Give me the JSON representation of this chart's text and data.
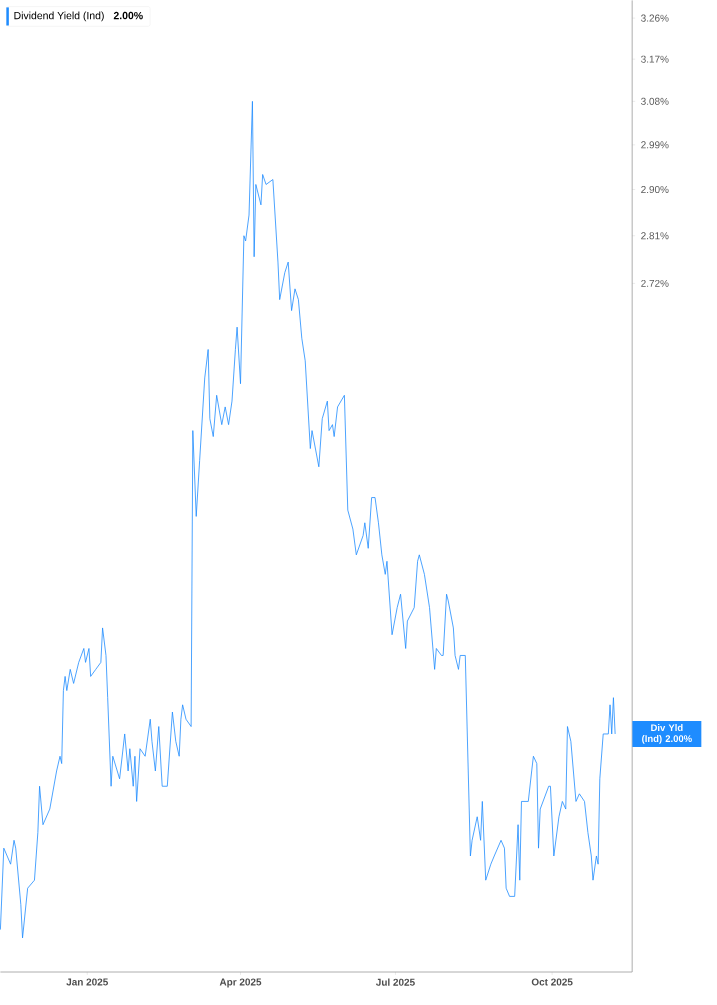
{
  "chart_data": {
    "type": "line",
    "x": [
      "2024-11-11",
      "2024-11-13",
      "2024-11-17",
      "2024-11-19",
      "2024-11-20",
      "2024-11-23",
      "2024-11-24",
      "2024-11-27",
      "2024-12-01",
      "2024-12-03",
      "2024-12-04",
      "2024-12-06",
      "2024-12-10",
      "2024-12-14",
      "2024-12-16",
      "2024-12-17",
      "2024-12-18",
      "2024-12-19",
      "2024-12-20",
      "2024-12-22",
      "2024-12-24",
      "2024-12-27",
      "2024-12-30",
      "2024-12-31",
      "2025-01-02",
      "2025-01-03",
      "2025-01-06",
      "2025-01-09",
      "2025-01-10",
      "2025-01-12",
      "2025-01-13",
      "2025-01-15",
      "2025-01-16",
      "2025-01-20",
      "2025-01-23",
      "2025-01-25",
      "2025-01-26",
      "2025-01-28",
      "2025-01-29",
      "2025-01-30",
      "2025-02-01",
      "2025-02-04",
      "2025-02-07",
      "2025-02-08",
      "2025-02-10",
      "2025-02-12",
      "2025-02-14",
      "2025-02-17",
      "2025-02-20",
      "2025-02-22",
      "2025-02-24",
      "2025-02-25",
      "2025-02-26",
      "2025-02-28",
      "2025-03-03",
      "2025-03-04",
      "2025-03-06",
      "2025-03-08",
      "2025-03-11",
      "2025-03-13",
      "2025-03-14",
      "2025-03-16",
      "2025-03-18",
      "2025-03-21",
      "2025-03-23",
      "2025-03-25",
      "2025-03-27",
      "2025-03-29",
      "2025-03-30",
      "2025-04-01",
      "2025-04-03",
      "2025-04-04",
      "2025-04-06",
      "2025-04-08",
      "2025-04-09",
      "2025-04-10",
      "2025-04-13",
      "2025-04-14",
      "2025-04-16",
      "2025-04-20",
      "2025-04-23",
      "2025-04-24",
      "2025-04-27",
      "2025-04-29",
      "2025-05-01",
      "2025-05-03",
      "2025-05-05",
      "2025-05-07",
      "2025-05-09",
      "2025-05-12",
      "2025-05-13",
      "2025-05-17",
      "2025-05-19",
      "2025-05-22",
      "2025-05-23",
      "2025-05-25",
      "2025-05-26",
      "2025-05-28",
      "2025-06-01",
      "2025-06-03",
      "2025-06-06",
      "2025-06-08",
      "2025-06-12",
      "2025-06-13",
      "2025-06-15",
      "2025-06-17",
      "2025-06-19",
      "2025-06-21",
      "2025-06-23",
      "2025-06-25",
      "2025-06-26",
      "2025-06-29",
      "2025-07-02",
      "2025-07-04",
      "2025-07-07",
      "2025-07-08",
      "2025-07-12",
      "2025-07-14",
      "2025-07-15",
      "2025-07-18",
      "2025-07-21",
      "2025-07-24",
      "2025-07-25",
      "2025-07-28",
      "2025-07-29",
      "2025-07-31",
      "2025-08-01",
      "2025-08-04",
      "2025-08-05",
      "2025-08-07",
      "2025-08-08",
      "2025-08-11",
      "2025-08-14",
      "2025-08-15",
      "2025-08-18",
      "2025-08-20",
      "2025-08-21",
      "2025-08-23",
      "2025-08-26",
      "2025-08-28",
      "2025-09-01",
      "2025-09-03",
      "2025-09-04",
      "2025-09-06",
      "2025-09-09",
      "2025-09-11",
      "2025-09-12",
      "2025-09-13",
      "2025-09-17",
      "2025-09-19",
      "2025-09-20",
      "2025-09-22",
      "2025-09-23",
      "2025-09-24",
      "2025-09-29",
      "2025-09-30",
      "2025-10-02",
      "2025-10-05",
      "2025-10-07",
      "2025-10-09",
      "2025-10-10",
      "2025-10-12",
      "2025-10-15",
      "2025-10-17",
      "2025-10-20",
      "2025-10-22",
      "2025-10-24",
      "2025-10-25",
      "2025-10-27",
      "2025-10-28",
      "2025-10-29",
      "2025-10-31",
      "2025-11-03",
      "2025-11-04",
      "2025-11-05",
      "2025-11-06",
      "2025-11-07"
    ],
    "series": [
      {
        "name": "Dividend Yield (Ind)",
        "color": "#1e8cff",
        "values": [
          1.75,
          1.85,
          1.83,
          1.86,
          1.85,
          1.78,
          1.74,
          1.8,
          1.81,
          1.87,
          1.93,
          1.88,
          1.9,
          1.95,
          1.97,
          1.96,
          2.06,
          2.08,
          2.06,
          2.09,
          2.07,
          2.1,
          2.12,
          2.1,
          2.12,
          2.08,
          2.09,
          2.1,
          2.15,
          2.11,
          2.05,
          1.93,
          1.97,
          1.94,
          2.0,
          1.95,
          1.98,
          1.93,
          1.97,
          1.91,
          1.98,
          1.97,
          2.02,
          1.99,
          1.95,
          2.01,
          1.93,
          1.93,
          2.03,
          1.99,
          1.97,
          2.02,
          2.04,
          2.02,
          2.01,
          2.46,
          2.32,
          2.41,
          2.55,
          2.6,
          2.48,
          2.45,
          2.52,
          2.47,
          2.5,
          2.47,
          2.51,
          2.6,
          2.64,
          2.54,
          2.81,
          2.8,
          2.85,
          3.08,
          2.77,
          2.91,
          2.87,
          2.93,
          2.91,
          2.92,
          2.76,
          2.69,
          2.74,
          2.76,
          2.67,
          2.71,
          2.69,
          2.62,
          2.58,
          2.43,
          2.46,
          2.4,
          2.48,
          2.51,
          2.46,
          2.47,
          2.45,
          2.5,
          2.52,
          2.33,
          2.3,
          2.26,
          2.29,
          2.31,
          2.27,
          2.35,
          2.35,
          2.31,
          2.26,
          2.23,
          2.25,
          2.14,
          2.18,
          2.2,
          2.12,
          2.16,
          2.18,
          2.25,
          2.26,
          2.23,
          2.18,
          2.09,
          2.12,
          2.11,
          2.11,
          2.2,
          2.19,
          2.15,
          2.11,
          2.09,
          2.11,
          2.11,
          1.84,
          1.86,
          1.89,
          1.86,
          1.91,
          1.81,
          1.83,
          1.84,
          1.86,
          1.85,
          1.8,
          1.79,
          1.79,
          1.88,
          1.81,
          1.91,
          1.91,
          1.95,
          1.97,
          1.96,
          1.85,
          1.9,
          1.93,
          1.93,
          1.84,
          1.89,
          1.91,
          1.9,
          2.01,
          1.99,
          1.91,
          1.92,
          1.91,
          1.87,
          1.84,
          1.81,
          1.84,
          1.83,
          1.94,
          2.0,
          2.0,
          2.04,
          2.0,
          2.05,
          2.0
        ]
      }
    ],
    "xlim": [
      "2024-11-11",
      "2025-11-17"
    ],
    "xticks": [
      {
        "value": "2025-01-01",
        "label": "Jan 2025"
      },
      {
        "value": "2025-04-01",
        "label": "Apr 2025"
      },
      {
        "value": "2025-07-01",
        "label": "Jul 2025"
      },
      {
        "value": "2025-10-01",
        "label": "Oct 2025"
      }
    ],
    "log": true,
    "ylim": [
      1.7,
      3.3
    ],
    "yticks": [
      {
        "value": 2.72,
        "label": "2.72%"
      },
      {
        "value": 2.81,
        "label": "2.81%"
      },
      {
        "value": 2.9,
        "label": "2.90%"
      },
      {
        "value": 2.99,
        "label": "2.99%"
      },
      {
        "value": 3.08,
        "label": "3.08%"
      },
      {
        "value": 3.17,
        "label": "3.17%"
      },
      {
        "value": 3.26,
        "label": "3.26%"
      }
    ],
    "annotations": [
      "Div Yld (Ind) 2.00%",
      "2.00%"
    ],
    "legend": "top left",
    "grid": false,
    "marker": "none",
    "line_style": "solid"
  }
}
